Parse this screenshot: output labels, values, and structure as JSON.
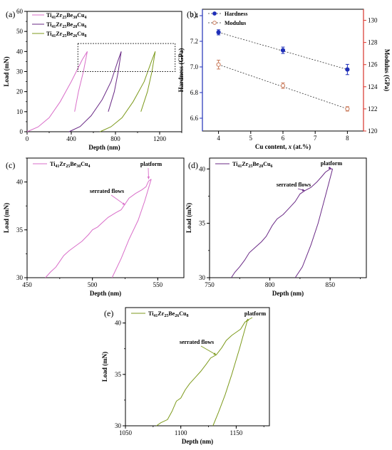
{
  "chart_data": [
    {
      "panel": "(a)",
      "type": "line",
      "xlabel": "Depth (nm)",
      "ylabel": "Load (mN)",
      "xlim": [
        0,
        1400
      ],
      "ylim": [
        0,
        60
      ],
      "xticks": [
        "0",
        "400",
        "800",
        "1200"
      ],
      "yticks": [
        "0",
        "10",
        "20",
        "30",
        "40",
        "50",
        "60"
      ],
      "legend_position": "top-left",
      "series": [
        {
          "name": "Ti41Zr25Be30Cu4",
          "name_parts": [
            "Ti",
            "41",
            "Zr",
            "25",
            "Be",
            "30",
            "Cu",
            "4"
          ],
          "color": "#d96ec9",
          "loading": [
            [
              0,
              0
            ],
            [
              100,
              2.4
            ],
            [
              200,
              7
            ],
            [
              300,
              15
            ],
            [
              400,
              25
            ],
            [
              500,
              36
            ],
            [
              545,
              40
            ]
          ],
          "unloading": [
            [
              545,
              40
            ],
            [
              510,
              30
            ],
            [
              465,
              20
            ],
            [
              430,
              10
            ]
          ]
        },
        {
          "name": "Ti41Zr25Be28Cu6",
          "name_parts": [
            "Ti",
            "41",
            "Zr",
            "25",
            "Be",
            "28",
            "Cu",
            "6"
          ],
          "color": "#6a2a86",
          "loading": [
            [
              380,
              0
            ],
            [
              480,
              2.6
            ],
            [
              580,
              8
            ],
            [
              680,
              16
            ],
            [
              760,
              25
            ],
            [
              820,
              35
            ],
            [
              852,
              40
            ]
          ],
          "unloading": [
            [
              852,
              40
            ],
            [
              825,
              30
            ],
            [
              790,
              20
            ],
            [
              735,
              10
            ]
          ]
        },
        {
          "name": "Ti41Zr25Be26Cu8",
          "name_parts": [
            "Ti",
            "41",
            "Zr",
            "25",
            "Be",
            "26",
            "Cu",
            "8"
          ],
          "color": "#7d9a1c",
          "loading": [
            [
              660,
              0
            ],
            [
              760,
              2.5
            ],
            [
              860,
              7
            ],
            [
              960,
              15
            ],
            [
              1060,
              25
            ],
            [
              1125,
              35
            ],
            [
              1160,
              40
            ]
          ],
          "unloading": [
            [
              1160,
              40
            ],
            [
              1130,
              30
            ],
            [
              1090,
              20
            ],
            [
              1030,
              10
            ]
          ]
        }
      ]
    },
    {
      "panel": "(b)",
      "type": "scatter",
      "xlabel": "Cu content, x (at.%)",
      "xlabel_parts": [
        "Cu content, ",
        "x",
        " (at.%)"
      ],
      "ylabel": "Hardness (GPa)",
      "y2label": "Modulus (GPa)",
      "xlim": [
        3.5,
        8.5
      ],
      "ylim": [
        6.5,
        7.45
      ],
      "y2lim": [
        120,
        131
      ],
      "xticks": [
        "4",
        "5",
        "6",
        "7",
        "8"
      ],
      "yticks": [
        "6.6",
        "6.8",
        "7.0",
        "7.2",
        "7.4"
      ],
      "y2ticks": [
        "120",
        "122",
        "124",
        "126",
        "128",
        "130"
      ],
      "legend_position": "top-left",
      "series": [
        {
          "name": "Hardness",
          "color": "#1f2fb8",
          "axis": "left",
          "x": [
            4,
            6,
            8
          ],
          "y": [
            7.27,
            7.13,
            6.98
          ],
          "err": [
            0.02,
            0.025,
            0.04
          ]
        },
        {
          "name": "Modulus",
          "color": "#c97a5a",
          "axis": "right",
          "x": [
            4,
            6,
            8
          ],
          "y": [
            126.0,
            124.1,
            122.0
          ],
          "err": [
            0.4,
            0.25,
            0.2
          ]
        }
      ]
    },
    {
      "panel": "(c)",
      "type": "line",
      "xlabel": "Depth (nm)",
      "ylabel": "Load (mN)",
      "xlim": [
        450,
        570
      ],
      "ylim": [
        30,
        42.5
      ],
      "xticks": [
        "450",
        "500",
        "550"
      ],
      "yticks": [
        "30",
        "35",
        "40"
      ],
      "legend": "Ti41Zr25Be30Cu4",
      "legend_parts": [
        "Ti",
        "41",
        "Zr",
        "25",
        "Be",
        "30",
        "Cu",
        "4"
      ],
      "color": "#d96ec9",
      "annotations": [
        "serrated flows",
        "platform"
      ],
      "loading": [
        [
          464,
          30
        ],
        [
          468,
          30.6
        ],
        [
          472,
          31.1
        ],
        [
          474,
          31.5
        ],
        [
          478,
          32.3
        ],
        [
          482,
          32.8
        ],
        [
          487,
          33.3
        ],
        [
          492,
          33.8
        ],
        [
          497,
          34.5
        ],
        [
          500,
          35.0
        ],
        [
          504,
          35.3
        ],
        [
          508,
          35.8
        ],
        [
          512,
          36.3
        ],
        [
          518,
          36.8
        ],
        [
          522,
          37.1
        ],
        [
          525,
          37.7
        ],
        [
          528,
          38.3
        ],
        [
          533,
          38.8
        ],
        [
          538,
          39.2
        ],
        [
          541,
          39.5
        ],
        [
          543,
          40.1
        ],
        [
          545,
          40.3
        ]
      ],
      "unloading": [
        [
          545,
          40.3
        ],
        [
          540,
          38.0
        ],
        [
          535,
          36.0
        ],
        [
          528,
          34.0
        ],
        [
          522,
          32.0
        ],
        [
          515,
          30
        ]
      ]
    },
    {
      "panel": "(d)",
      "type": "line",
      "xlabel": "Depth (nm)",
      "ylabel": "Load (mN)",
      "xlim": [
        750,
        880
      ],
      "ylim": [
        30,
        41
      ],
      "xticks": [
        "750",
        "800",
        "850"
      ],
      "yticks": [
        "30",
        "35",
        "40"
      ],
      "legend": "Ti41Zr25Be28Cu6",
      "legend_parts": [
        "Ti",
        "41",
        "Zr",
        "25",
        "Be",
        "28",
        "Cu",
        "6"
      ],
      "color": "#6a2a86",
      "annotations": [
        "serrated flows",
        "platform"
      ],
      "loading": [
        [
          768,
          30
        ],
        [
          771,
          30.5
        ],
        [
          775,
          31
        ],
        [
          779,
          31.6
        ],
        [
          783,
          32.3
        ],
        [
          788,
          32.8
        ],
        [
          793,
          33.3
        ],
        [
          797,
          33.8
        ],
        [
          802,
          34.8
        ],
        [
          806,
          35.4
        ],
        [
          811,
          35.8
        ],
        [
          816,
          36.4
        ],
        [
          821,
          37.0
        ],
        [
          825,
          37.7
        ],
        [
          829,
          38.0
        ],
        [
          834,
          38.3
        ],
        [
          839,
          38.8
        ],
        [
          843,
          39.3
        ],
        [
          846,
          39.7
        ],
        [
          850,
          40.0
        ],
        [
          852,
          40.0
        ]
      ],
      "unloading": [
        [
          852,
          40.0
        ],
        [
          846,
          37.5
        ],
        [
          840,
          35.0
        ],
        [
          834,
          33.0
        ],
        [
          827,
          31.0
        ],
        [
          821,
          30
        ]
      ]
    },
    {
      "panel": "(e)",
      "type": "line",
      "xlabel": "Depth (nm)",
      "ylabel": "Load (mN)",
      "xlim": [
        1050,
        1180
      ],
      "ylim": [
        30,
        41.5
      ],
      "xticks": [
        "1050",
        "1100",
        "1150"
      ],
      "yticks": [
        "30",
        "35",
        "40"
      ],
      "legend": "Ti41Zr25Be26Cu8",
      "legend_parts": [
        "Ti",
        "41",
        "Zr",
        "25",
        "Be",
        "26",
        "Cu",
        "8"
      ],
      "color": "#7d9a1c",
      "annotations": [
        "serrated flows",
        "platform"
      ],
      "loading": [
        [
          1078,
          30
        ],
        [
          1082,
          30.3
        ],
        [
          1088,
          30.6
        ],
        [
          1092,
          31.4
        ],
        [
          1096,
          32.4
        ],
        [
          1100,
          32.7
        ],
        [
          1104,
          33.5
        ],
        [
          1108,
          34.1
        ],
        [
          1113,
          34.7
        ],
        [
          1118,
          35.3
        ],
        [
          1123,
          36.0
        ],
        [
          1127,
          36.6
        ],
        [
          1132,
          36.9
        ],
        [
          1137,
          37.6
        ],
        [
          1141,
          38.3
        ],
        [
          1146,
          38.8
        ],
        [
          1150,
          39.1
        ],
        [
          1154,
          39.4
        ],
        [
          1158,
          40.1
        ],
        [
          1160,
          40.2
        ]
      ],
      "unloading": [
        [
          1160,
          40.2
        ],
        [
          1153,
          37.5
        ],
        [
          1146,
          35.0
        ],
        [
          1140,
          33.0
        ],
        [
          1134,
          31.3
        ],
        [
          1129,
          30
        ]
      ]
    }
  ]
}
